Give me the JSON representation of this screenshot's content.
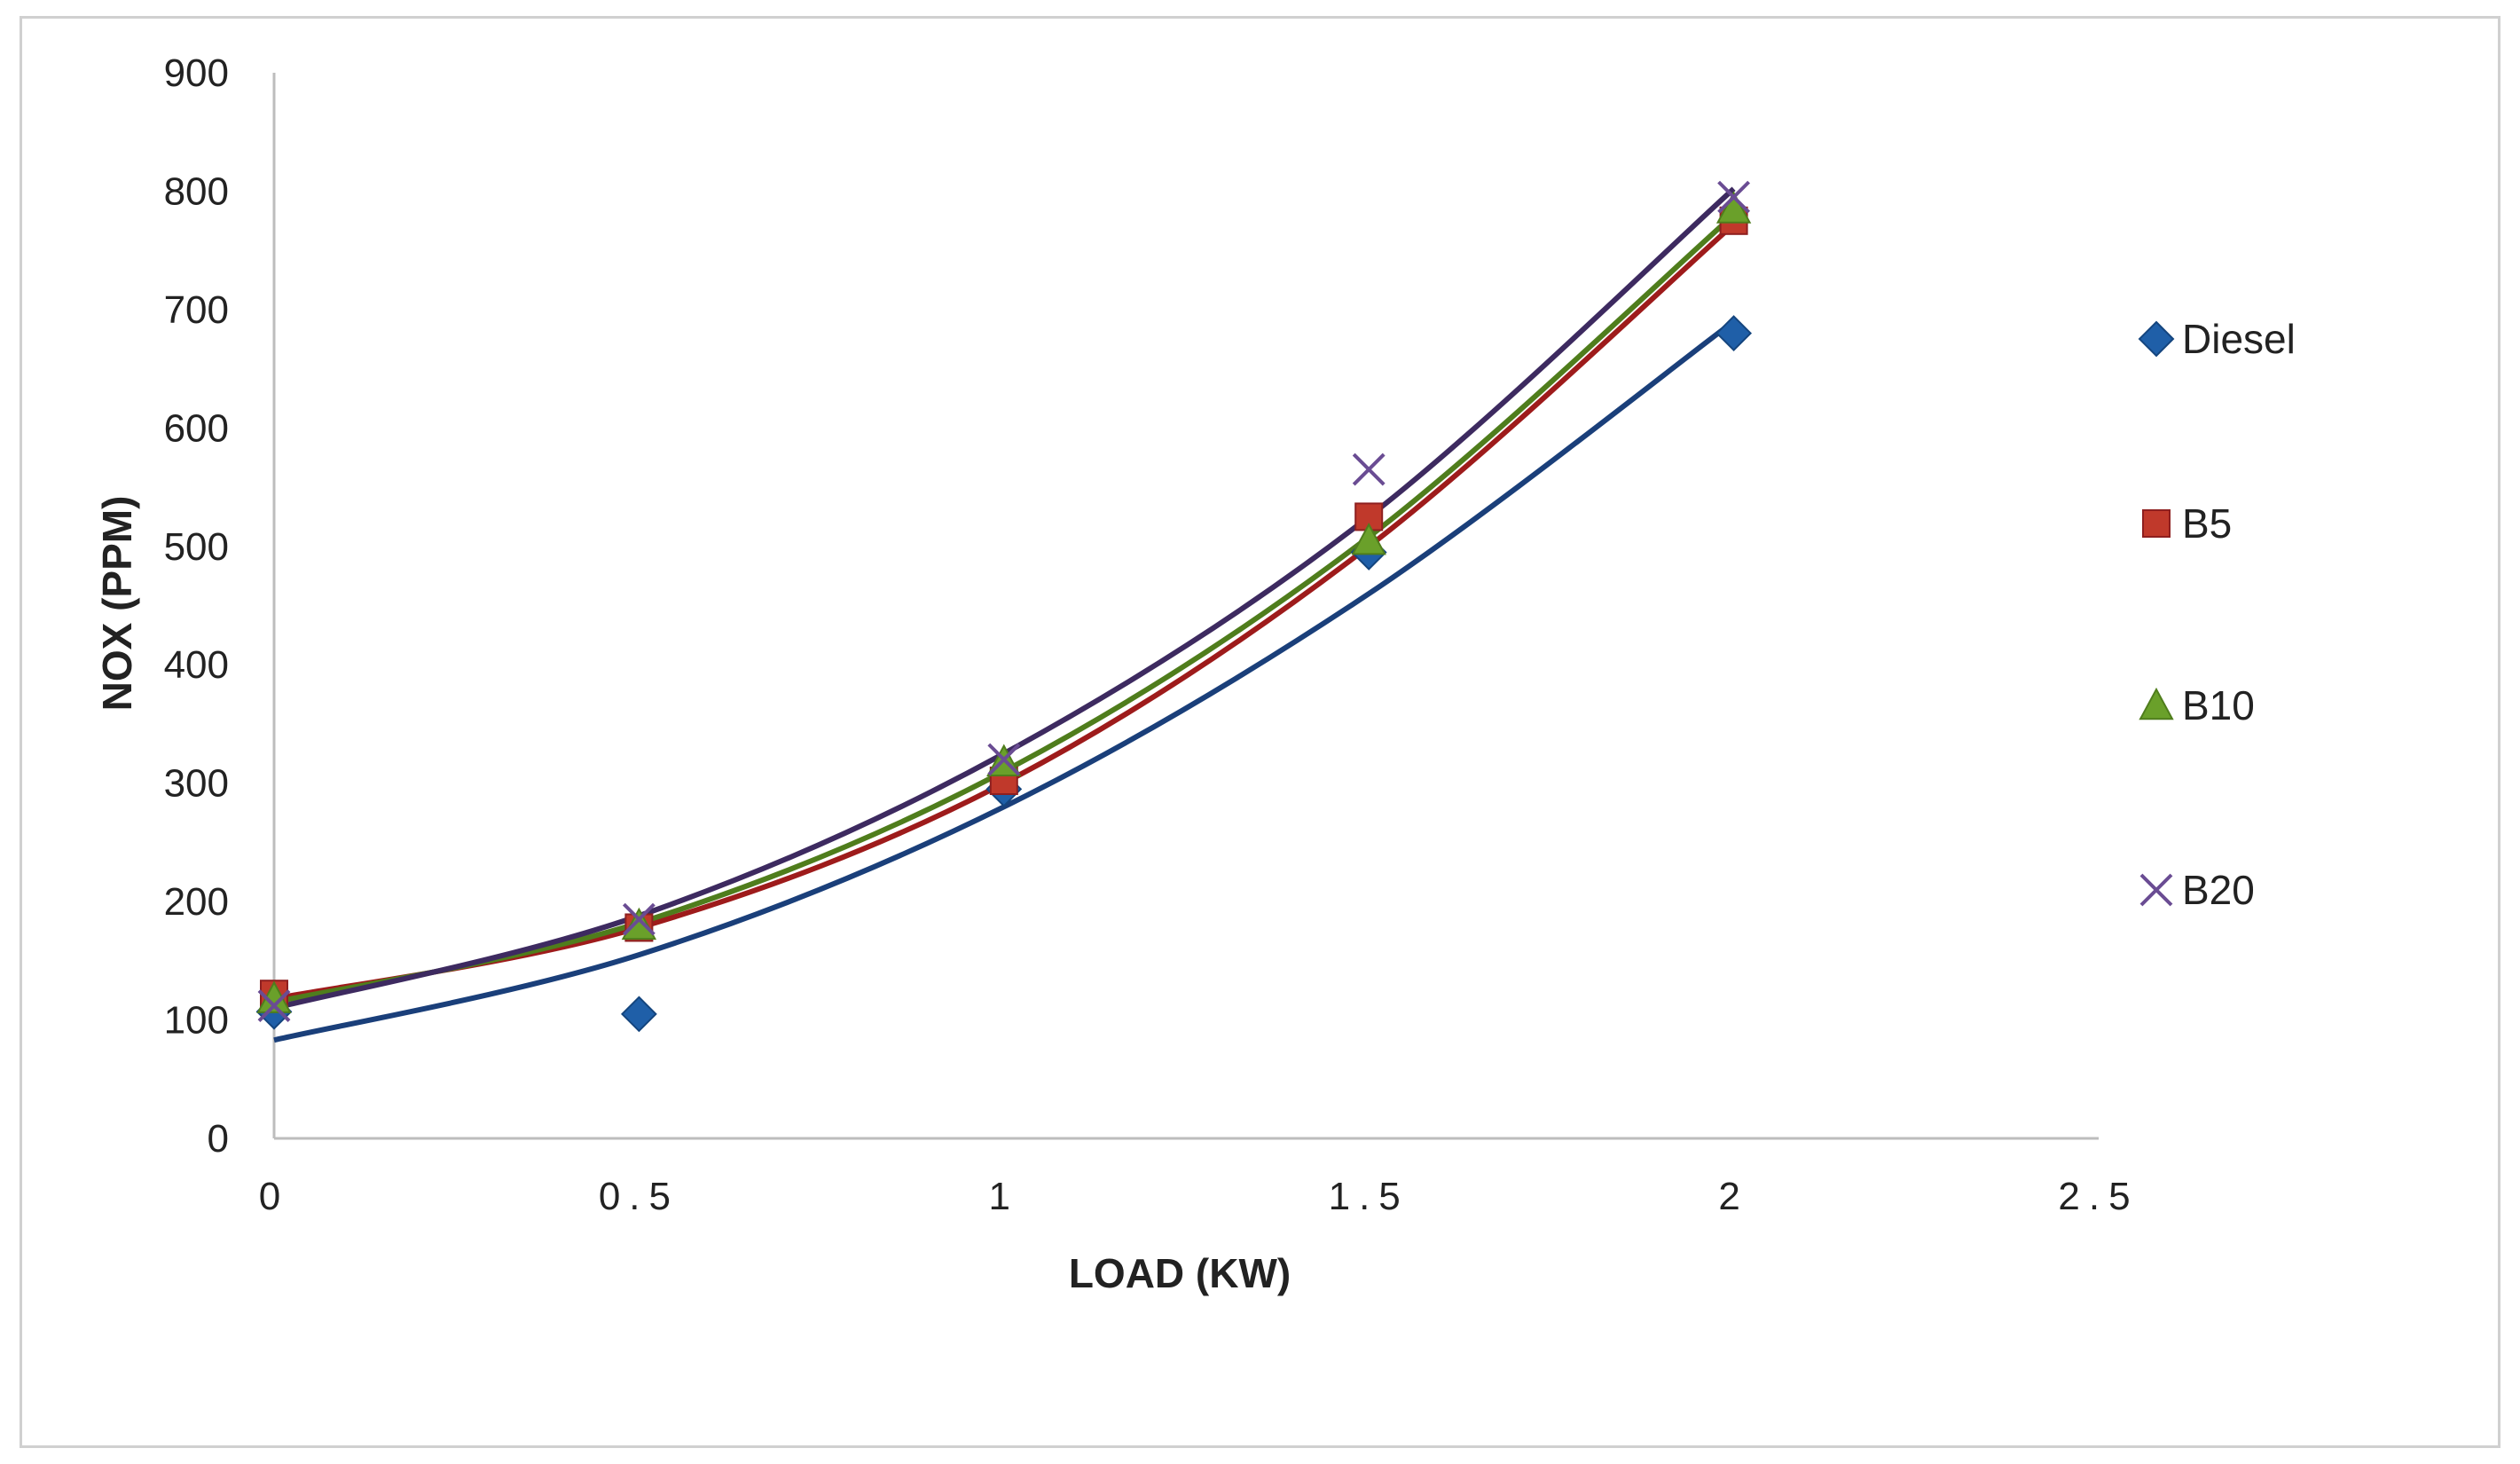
{
  "chart_data": {
    "type": "scatter",
    "title": "",
    "xlabel": "LOAD (KW)",
    "ylabel": "NOX (PPM)",
    "xlim": [
      0,
      2.5
    ],
    "ylim": [
      0,
      900
    ],
    "x_ticks": [
      0,
      0.5,
      1,
      1.5,
      2,
      2.5
    ],
    "x_tick_labels": [
      "0",
      "0.5",
      "1",
      "1.5",
      "2",
      "2.5"
    ],
    "y_ticks": [
      0,
      100,
      200,
      300,
      400,
      500,
      600,
      700,
      800,
      900
    ],
    "y_tick_labels": [
      "0",
      "100",
      "200",
      "300",
      "400",
      "500",
      "600",
      "700",
      "800",
      "900"
    ],
    "grid": false,
    "legend_position": "right",
    "trendline": "polynomial",
    "series": [
      {
        "name": "Diesel",
        "marker": "diamond",
        "color": "#1f5fa8",
        "trend_color": "#1a3f7a",
        "x": [
          0,
          0.5,
          1,
          1.5,
          2
        ],
        "y": [
          107,
          105,
          295,
          495,
          680
        ],
        "trend": [
          [
            0,
            83
          ],
          [
            0.5,
            155
          ],
          [
            1,
            280
          ],
          [
            1.5,
            460
          ],
          [
            2,
            690
          ]
        ]
      },
      {
        "name": "B5",
        "marker": "square",
        "color": "#c0392b",
        "trend_color": "#9e1b1b",
        "x": [
          0,
          0.5,
          1,
          1.5,
          2
        ],
        "y": [
          122,
          178,
          302,
          525,
          775
        ],
        "trend": [
          [
            0,
            118
          ],
          [
            0.5,
            178
          ],
          [
            1,
            300
          ],
          [
            1.5,
            500
          ],
          [
            2,
            772
          ]
        ]
      },
      {
        "name": "B10",
        "marker": "triangle",
        "color": "#6aa02a",
        "trend_color": "#4f7d1c",
        "x": [
          0,
          0.5,
          1,
          1.5,
          2
        ],
        "y": [
          118,
          180,
          318,
          505,
          785
        ],
        "trend": [
          [
            0,
            115
          ],
          [
            0.5,
            182
          ],
          [
            1,
            310
          ],
          [
            1.5,
            508
          ],
          [
            2,
            780
          ]
        ]
      },
      {
        "name": "B20",
        "marker": "x",
        "color": "#6a4c93",
        "trend_color": "#3d2a60",
        "x": [
          0,
          0.5,
          1,
          1.5,
          2
        ],
        "y": [
          112,
          185,
          320,
          565,
          795
        ],
        "trend": [
          [
            0,
            110
          ],
          [
            0.5,
            188
          ],
          [
            1,
            325
          ],
          [
            1.5,
            525
          ],
          [
            2,
            802
          ]
        ]
      }
    ]
  }
}
